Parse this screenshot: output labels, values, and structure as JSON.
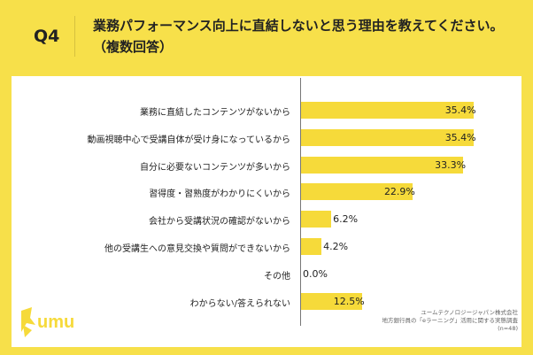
{
  "header": {
    "q_number": "Q4",
    "question": "業務パフォーマンス向上に直結しないと思う理由を教えてください。（複数回答）"
  },
  "chart_data": {
    "type": "bar",
    "orientation": "horizontal",
    "categories": [
      "業務に直結したコンテンツがないから",
      "動画視聴中心で受講自体が受け身になっているから",
      "自分に必要ないコンテンツが多いから",
      "習得度・習熟度がわかりにくいから",
      "会社から受講状況の確認がないから",
      "他の受講生への意見交換や質問ができないから",
      "その他",
      "わからない/答えられない"
    ],
    "values": [
      35.4,
      35.4,
      33.3,
      22.9,
      6.2,
      4.2,
      0.0,
      12.5
    ],
    "value_labels": [
      "35.4%",
      "35.4%",
      "33.3%",
      "22.9%",
      "6.2%",
      "4.2%",
      "0.0%",
      "12.5%"
    ],
    "xlim": [
      0,
      36
    ],
    "bar_color": "#f6da3a"
  },
  "logo": {
    "text": "umu"
  },
  "source": {
    "line1": "ユームテクノロジージャパン株式会社",
    "line2": "地方銀行員の「eラーニング」活用に関する実態調査",
    "line3": "(n=48)"
  }
}
